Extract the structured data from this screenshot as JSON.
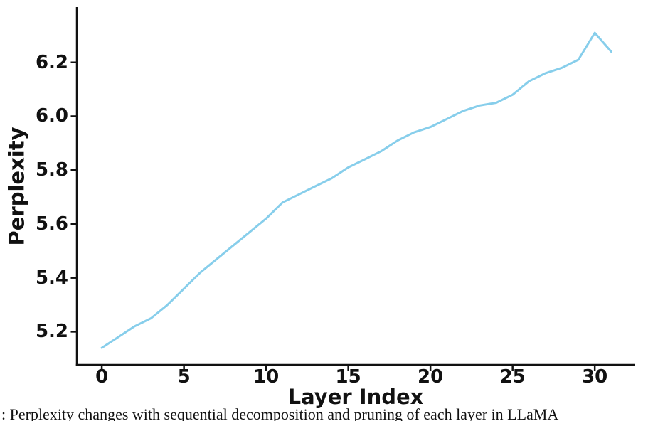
{
  "chart_data": {
    "type": "line",
    "title": "",
    "xlabel": "Layer Index",
    "ylabel": "Perplexity",
    "x": [
      0,
      1,
      2,
      3,
      4,
      5,
      6,
      7,
      8,
      9,
      10,
      11,
      12,
      13,
      14,
      15,
      16,
      17,
      18,
      19,
      20,
      21,
      22,
      23,
      24,
      25,
      26,
      27,
      28,
      29,
      30,
      31
    ],
    "values": [
      5.14,
      5.18,
      5.22,
      5.25,
      5.3,
      5.36,
      5.42,
      5.47,
      5.52,
      5.57,
      5.62,
      5.68,
      5.71,
      5.74,
      5.77,
      5.81,
      5.84,
      5.87,
      5.91,
      5.94,
      5.96,
      5.99,
      6.02,
      6.04,
      6.05,
      6.08,
      6.13,
      6.16,
      6.18,
      6.21,
      6.31,
      6.24
    ],
    "xticks": [
      0,
      5,
      10,
      15,
      20,
      25,
      30
    ],
    "yticks": [
      5.2,
      5.4,
      5.6,
      5.8,
      6.0,
      6.2
    ],
    "xlim": [
      -1.52,
      32.46
    ],
    "ylim": [
      5.077,
      6.4
    ],
    "grid": false,
    "legend": "none",
    "line_color": "#87CEEB",
    "axis_color": "#111111"
  },
  "caption": ": Perplexity changes with sequential decomposition and pruning of each layer in LLaMA"
}
